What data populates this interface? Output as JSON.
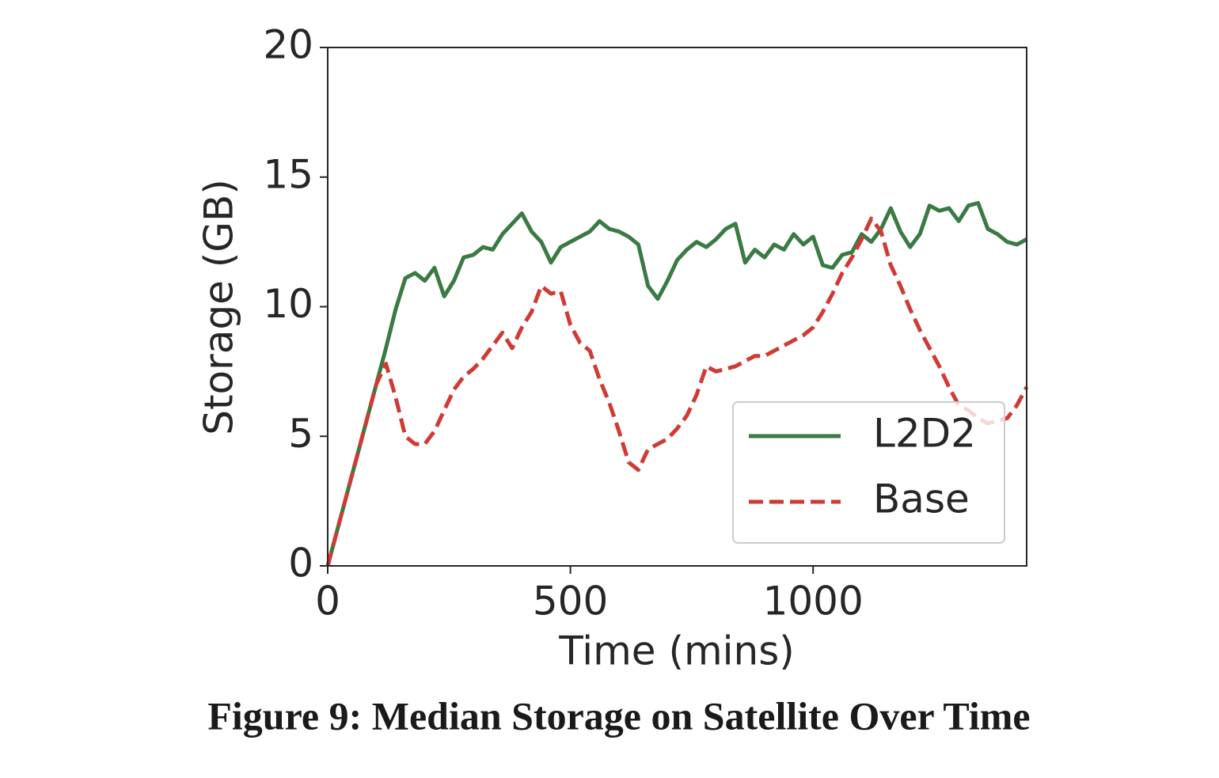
{
  "chart_data": {
    "type": "line",
    "caption": "Figure 9: Median Storage on Satellite Over Time",
    "xlabel": "Time (mins)",
    "ylabel": "Storage (GB)",
    "xlim": [
      0,
      1440
    ],
    "ylim": [
      0,
      20
    ],
    "xticks": [
      0,
      500,
      1000
    ],
    "yticks": [
      0,
      5,
      10,
      15,
      20
    ],
    "grid": false,
    "legend": "lower right",
    "x": [
      0,
      20,
      40,
      60,
      80,
      100,
      120,
      140,
      160,
      180,
      200,
      220,
      240,
      260,
      280,
      300,
      320,
      340,
      360,
      380,
      400,
      420,
      440,
      460,
      480,
      500,
      520,
      540,
      560,
      580,
      600,
      620,
      640,
      660,
      680,
      700,
      720,
      740,
      760,
      780,
      800,
      820,
      840,
      860,
      880,
      900,
      920,
      940,
      960,
      980,
      1000,
      1020,
      1040,
      1060,
      1080,
      1100,
      1120,
      1140,
      1160,
      1180,
      1200,
      1220,
      1240,
      1260,
      1280,
      1300,
      1320,
      1340,
      1360,
      1380,
      1400,
      1420,
      1440
    ],
    "series": [
      {
        "name": "L2D2",
        "color": "#3a7a43",
        "linestyle": "solid",
        "values": [
          0,
          1.4,
          2.8,
          4.2,
          5.6,
          7.0,
          8.4,
          9.9,
          11.1,
          11.3,
          11.0,
          11.5,
          10.4,
          11.0,
          11.9,
          12.0,
          12.3,
          12.2,
          12.8,
          13.2,
          13.6,
          12.9,
          12.5,
          11.7,
          12.3,
          12.5,
          12.7,
          12.9,
          13.3,
          13.0,
          12.9,
          12.7,
          12.4,
          10.8,
          10.3,
          11.0,
          11.8,
          12.2,
          12.5,
          12.3,
          12.6,
          13.0,
          13.2,
          11.7,
          12.2,
          11.9,
          12.4,
          12.2,
          12.8,
          12.4,
          12.7,
          11.6,
          11.5,
          12.0,
          12.1,
          12.8,
          12.5,
          13.0,
          13.8,
          12.9,
          12.3,
          12.8,
          13.9,
          13.7,
          13.8,
          13.3,
          13.9,
          14.0,
          13.0,
          12.8,
          12.5,
          12.4,
          12.6
        ]
      },
      {
        "name": "Base",
        "color": "#d03a35",
        "linestyle": "dashed",
        "values": [
          0,
          1.4,
          2.8,
          4.2,
          5.6,
          7.0,
          7.8,
          6.5,
          5.0,
          4.7,
          4.7,
          5.2,
          6.0,
          6.8,
          7.3,
          7.6,
          8.0,
          8.5,
          9.0,
          8.4,
          9.2,
          9.8,
          10.8,
          10.5,
          10.6,
          9.3,
          8.6,
          8.3,
          7.2,
          6.3,
          5.2,
          4.0,
          3.7,
          4.5,
          4.7,
          4.9,
          5.3,
          5.8,
          6.6,
          7.7,
          7.5,
          7.6,
          7.7,
          7.9,
          8.1,
          8.1,
          8.3,
          8.5,
          8.7,
          8.9,
          9.2,
          9.8,
          10.5,
          11.3,
          11.9,
          12.6,
          13.4,
          12.9,
          11.6,
          10.8,
          9.9,
          9.1,
          8.4,
          7.7,
          6.9,
          6.2,
          6.0,
          5.7,
          5.5,
          5.6,
          5.7,
          6.2,
          6.9
        ]
      }
    ]
  }
}
